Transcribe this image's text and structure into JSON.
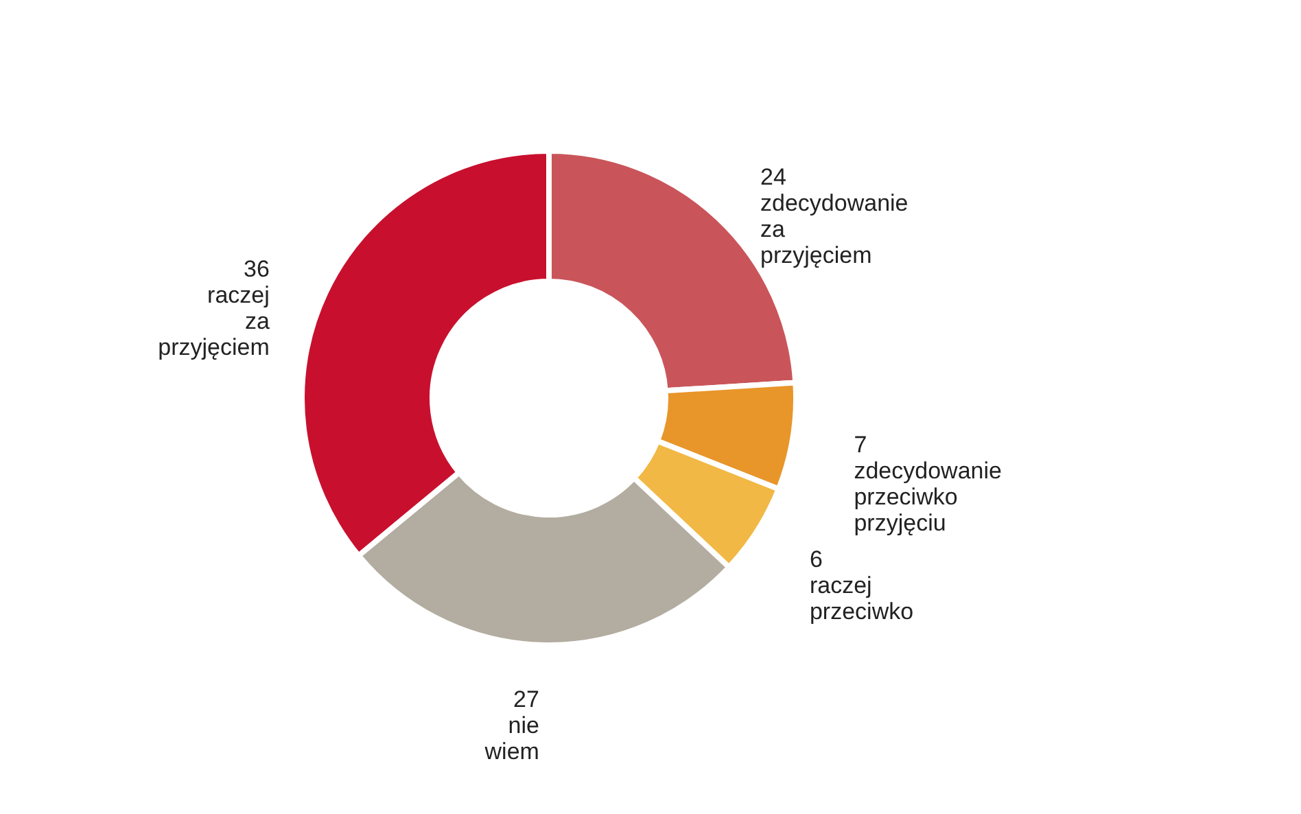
{
  "chart_data": {
    "type": "donut",
    "categories": [
      "zdecydowanie za przyjęciem",
      "zdecydowanie przeciwko przyjęciu",
      "raczej przeciwko",
      "nie wiem",
      "raczej za przyjęciem"
    ],
    "values": [
      24,
      7,
      6,
      27,
      36
    ],
    "colors": [
      "#c9555a",
      "#e8952a",
      "#f2b845",
      "#b2ada0",
      "#c8102e"
    ],
    "data_labels": true
  }
}
